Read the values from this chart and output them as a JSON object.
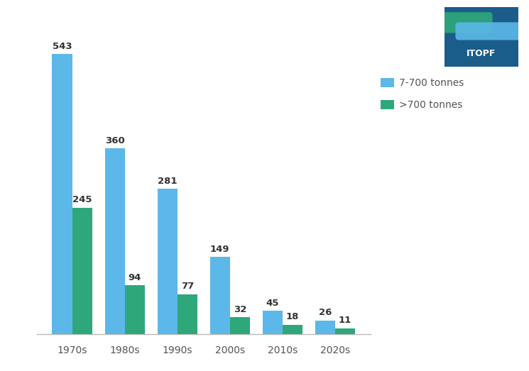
{
  "categories": [
    "1970s",
    "1980s",
    "1990s",
    "2000s",
    "2010s",
    "2020s"
  ],
  "medium_spills": [
    543,
    360,
    281,
    149,
    45,
    26
  ],
  "large_spills": [
    245,
    94,
    77,
    32,
    18,
    11
  ],
  "medium_color": "#5BB8E8",
  "large_color": "#2EA87A",
  "label_medium": "7-700 tonnes",
  "label_large": ">700 tonnes",
  "background_color": "#FFFFFF",
  "ylim": [
    0,
    590
  ],
  "bar_width": 0.38,
  "label_fontsize": 9.5,
  "tick_fontsize": 10,
  "legend_fontsize": 10,
  "legend_text_color": "#555555",
  "axis_color": "#BBBBBB",
  "value_label_color": "#333333"
}
